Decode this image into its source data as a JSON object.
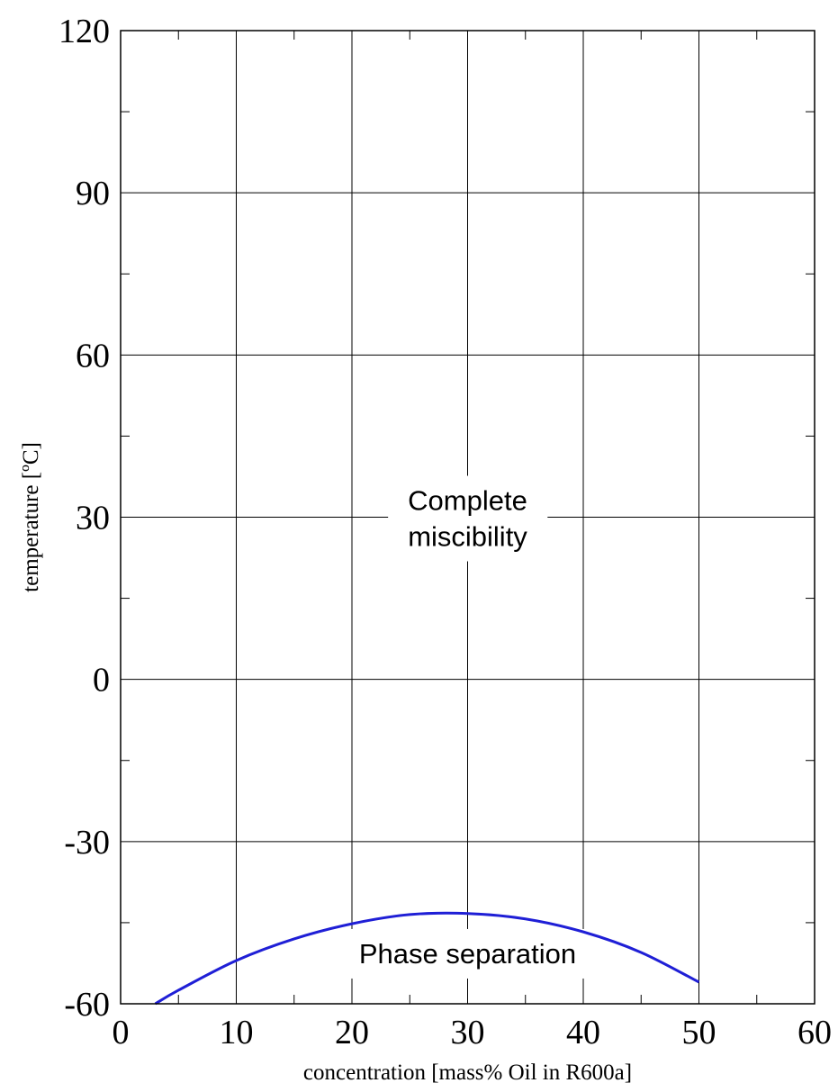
{
  "chart_data": {
    "type": "line",
    "xlabel": "concentration [mass% Oil in R600a]",
    "ylabel": "temperature [ºC]",
    "xlim": [
      0,
      60
    ],
    "ylim": [
      -60,
      120
    ],
    "xticks": [
      0,
      10,
      20,
      30,
      40,
      50,
      60
    ],
    "yticks": [
      -60,
      -30,
      0,
      30,
      60,
      90,
      120
    ],
    "x_minor_step": 5,
    "y_minor_step": 15,
    "grid": true,
    "series": [
      {
        "color": "#1f1fd6",
        "x": [
          3,
          5,
          10,
          15,
          20,
          25,
          30,
          35,
          40,
          45,
          50
        ],
        "y": [
          -60,
          -57.5,
          -52,
          -48,
          -45.2,
          -43.5,
          -43.3,
          -44.3,
          -46.7,
          -50.5,
          -56
        ]
      }
    ],
    "annotations": [
      {
        "lines": [
          "Complete",
          "miscibility"
        ],
        "x": 30,
        "y": 28
      },
      {
        "lines": [
          "Phase separation"
        ],
        "x": 30,
        "y": -52.5
      }
    ]
  }
}
